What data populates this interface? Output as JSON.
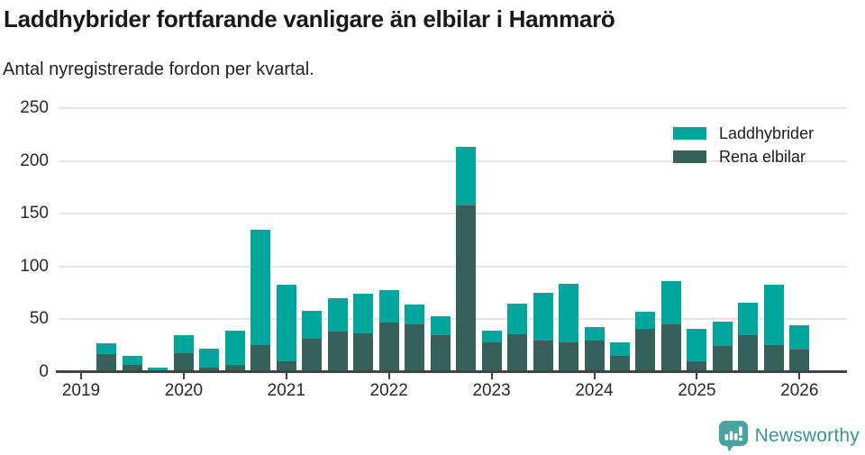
{
  "header": {
    "title": "Laddhybrider fortfarande vanligare än elbilar i Hammarö",
    "subtitle": "Antal nyregistrerade fordon per kvartal."
  },
  "chart_data": {
    "type": "bar",
    "stacked": true,
    "title": "Laddhybrider fortfarande vanligare än elbilar i Hammarö",
    "subtitle": "Antal nyregistrerade fordon per kvartal.",
    "ylim": [
      0,
      250
    ],
    "yticks": [
      0,
      50,
      100,
      150,
      200,
      250
    ],
    "xticks": [
      "2019",
      "2020",
      "2021",
      "2022",
      "2023",
      "2024",
      "2025",
      "2026"
    ],
    "grid": "horizontal",
    "legend_position": "top-right",
    "quarters": [
      "2019 Q1",
      "2019 Q2",
      "2019 Q3",
      "2019 Q4",
      "2020 Q1",
      "2020 Q2",
      "2020 Q3",
      "2020 Q4",
      "2021 Q1",
      "2021 Q2",
      "2021 Q3",
      "2021 Q4",
      "2022 Q1",
      "2022 Q2",
      "2022 Q3",
      "2022 Q4",
      "2023 Q1",
      "2023 Q2",
      "2023 Q3",
      "2023 Q4",
      "2024 Q1",
      "2024 Q2",
      "2024 Q3",
      "2024 Q4",
      "2025 Q1",
      "2025 Q2",
      "2025 Q3",
      "2025 Q4",
      "2026 Q1"
    ],
    "series": [
      {
        "name": "Rena elbilar",
        "color": "#36615b",
        "stack_order": "bottom",
        "values": [
          0,
          17,
          7,
          2,
          18,
          4,
          7,
          26,
          10,
          32,
          38,
          37,
          47,
          45,
          35,
          158,
          28,
          36,
          30,
          28,
          30,
          15,
          41,
          45,
          10,
          25,
          35,
          26,
          21
        ]
      },
      {
        "name": "Laddhybrider",
        "color": "#00a59c",
        "stack_order": "top",
        "values": [
          0,
          10,
          8,
          2,
          17,
          18,
          32,
          109,
          73,
          26,
          32,
          37,
          31,
          19,
          18,
          55,
          11,
          29,
          45,
          56,
          13,
          13,
          16,
          41,
          31,
          23,
          31,
          57,
          23
        ]
      }
    ],
    "stacked_totals": [
      0,
      27,
      15,
      4,
      35,
      22,
      39,
      135,
      83,
      58,
      70,
      74,
      78,
      64,
      53,
      213,
      39,
      65,
      75,
      84,
      43,
      28,
      57,
      86,
      41,
      48,
      66,
      83,
      44
    ],
    "legend": [
      {
        "label": "Laddhybrider",
        "color": "#00a59c"
      },
      {
        "label": "Rena elbilar",
        "color": "#36615b"
      }
    ]
  },
  "footer": {
    "brand": "Newsworthy",
    "logo_color": "#4aa39e",
    "text_color": "#3e958f"
  }
}
